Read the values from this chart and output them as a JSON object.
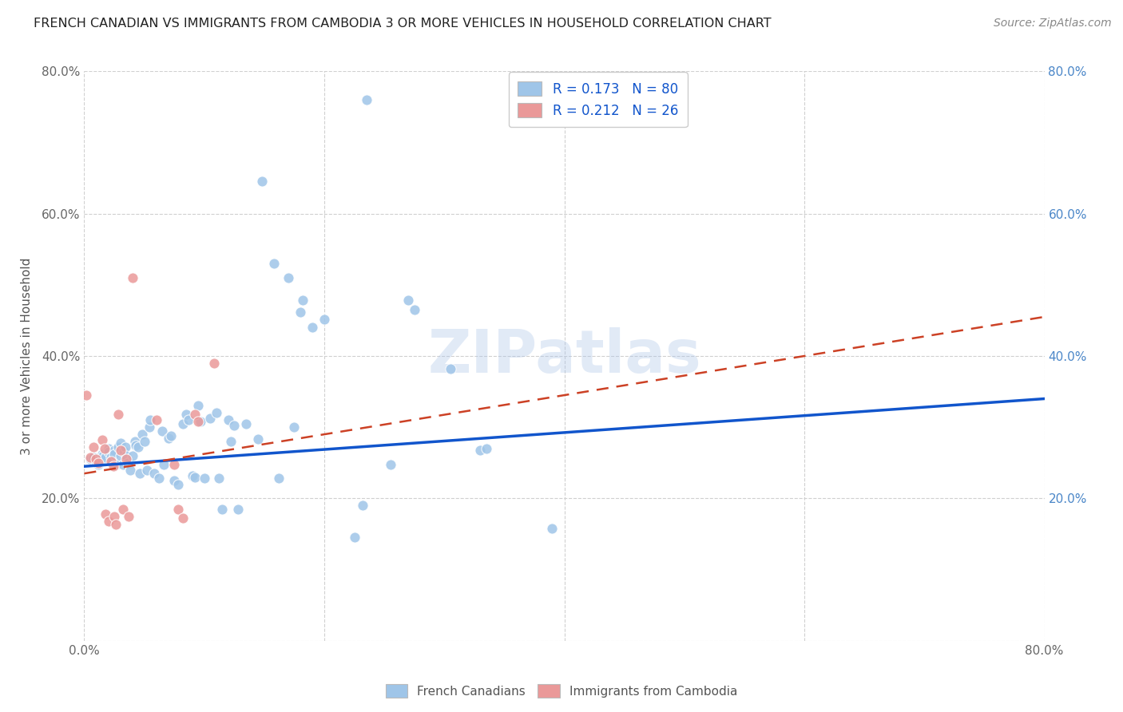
{
  "title": "FRENCH CANADIAN VS IMMIGRANTS FROM CAMBODIA 3 OR MORE VEHICLES IN HOUSEHOLD CORRELATION CHART",
  "source": "Source: ZipAtlas.com",
  "ylabel": "3 or more Vehicles in Household",
  "xlim": [
    0,
    0.8
  ],
  "ylim": [
    0,
    0.8
  ],
  "xtick_vals": [
    0.0,
    0.2,
    0.4,
    0.6,
    0.8
  ],
  "ytick_vals": [
    0.0,
    0.2,
    0.4,
    0.6,
    0.8
  ],
  "xticklabels": [
    "0.0%",
    "",
    "",
    "",
    "80.0%"
  ],
  "yticklabels": [
    "",
    "20.0%",
    "40.0%",
    "60.0%",
    "80.0%"
  ],
  "right_yticklabels": [
    "20.0%",
    "40.0%",
    "60.0%",
    "80.0%"
  ],
  "blue_color": "#9fc5e8",
  "pink_color": "#ea9999",
  "blue_line_color": "#1155cc",
  "pink_line_color": "#cc4125",
  "legend_R_blue": "0.173",
  "legend_N_blue": "80",
  "legend_R_pink": "0.212",
  "legend_N_pink": "26",
  "bottom_legend": [
    "French Canadians",
    "Immigrants from Cambodia"
  ],
  "watermark": "ZIPatlas",
  "blue_line_x0": 0.0,
  "blue_line_y0": 0.245,
  "blue_line_x1": 0.8,
  "blue_line_y1": 0.34,
  "pink_line_x0": 0.0,
  "pink_line_y0": 0.235,
  "pink_line_x1": 0.8,
  "pink_line_y1": 0.455,
  "blue_points": [
    [
      0.005,
      0.255
    ],
    [
      0.008,
      0.258
    ],
    [
      0.01,
      0.252
    ],
    [
      0.012,
      0.248
    ],
    [
      0.015,
      0.262
    ],
    [
      0.015,
      0.255
    ],
    [
      0.016,
      0.26
    ],
    [
      0.018,
      0.258
    ],
    [
      0.02,
      0.27
    ],
    [
      0.02,
      0.265
    ],
    [
      0.022,
      0.258
    ],
    [
      0.023,
      0.253
    ],
    [
      0.025,
      0.268
    ],
    [
      0.025,
      0.262
    ],
    [
      0.026,
      0.25
    ],
    [
      0.027,
      0.247
    ],
    [
      0.028,
      0.272
    ],
    [
      0.03,
      0.278
    ],
    [
      0.03,
      0.26
    ],
    [
      0.032,
      0.248
    ],
    [
      0.033,
      0.267
    ],
    [
      0.034,
      0.272
    ],
    [
      0.035,
      0.26
    ],
    [
      0.036,
      0.25
    ],
    [
      0.038,
      0.24
    ],
    [
      0.04,
      0.26
    ],
    [
      0.042,
      0.28
    ],
    [
      0.043,
      0.275
    ],
    [
      0.045,
      0.272
    ],
    [
      0.046,
      0.235
    ],
    [
      0.048,
      0.29
    ],
    [
      0.05,
      0.28
    ],
    [
      0.052,
      0.24
    ],
    [
      0.054,
      0.3
    ],
    [
      0.055,
      0.31
    ],
    [
      0.058,
      0.235
    ],
    [
      0.062,
      0.228
    ],
    [
      0.065,
      0.295
    ],
    [
      0.066,
      0.248
    ],
    [
      0.07,
      0.285
    ],
    [
      0.072,
      0.288
    ],
    [
      0.075,
      0.225
    ],
    [
      0.078,
      0.22
    ],
    [
      0.082,
      0.305
    ],
    [
      0.085,
      0.318
    ],
    [
      0.087,
      0.31
    ],
    [
      0.09,
      0.232
    ],
    [
      0.092,
      0.23
    ],
    [
      0.095,
      0.33
    ],
    [
      0.097,
      0.308
    ],
    [
      0.1,
      0.228
    ],
    [
      0.105,
      0.312
    ],
    [
      0.11,
      0.32
    ],
    [
      0.112,
      0.228
    ],
    [
      0.115,
      0.185
    ],
    [
      0.12,
      0.31
    ],
    [
      0.122,
      0.28
    ],
    [
      0.125,
      0.302
    ],
    [
      0.128,
      0.185
    ],
    [
      0.135,
      0.305
    ],
    [
      0.145,
      0.283
    ],
    [
      0.148,
      0.645
    ],
    [
      0.158,
      0.53
    ],
    [
      0.162,
      0.228
    ],
    [
      0.17,
      0.51
    ],
    [
      0.175,
      0.3
    ],
    [
      0.18,
      0.462
    ],
    [
      0.182,
      0.478
    ],
    [
      0.19,
      0.44
    ],
    [
      0.2,
      0.452
    ],
    [
      0.225,
      0.145
    ],
    [
      0.232,
      0.19
    ],
    [
      0.235,
      0.76
    ],
    [
      0.255,
      0.248
    ],
    [
      0.27,
      0.478
    ],
    [
      0.275,
      0.465
    ],
    [
      0.305,
      0.382
    ],
    [
      0.33,
      0.268
    ],
    [
      0.335,
      0.27
    ],
    [
      0.39,
      0.158
    ]
  ],
  "pink_points": [
    [
      0.005,
      0.258
    ],
    [
      0.008,
      0.272
    ],
    [
      0.01,
      0.255
    ],
    [
      0.012,
      0.25
    ],
    [
      0.015,
      0.282
    ],
    [
      0.017,
      0.27
    ],
    [
      0.018,
      0.178
    ],
    [
      0.02,
      0.168
    ],
    [
      0.022,
      0.252
    ],
    [
      0.024,
      0.245
    ],
    [
      0.025,
      0.175
    ],
    [
      0.026,
      0.163
    ],
    [
      0.028,
      0.318
    ],
    [
      0.03,
      0.268
    ],
    [
      0.032,
      0.185
    ],
    [
      0.035,
      0.255
    ],
    [
      0.037,
      0.175
    ],
    [
      0.04,
      0.51
    ],
    [
      0.06,
      0.31
    ],
    [
      0.075,
      0.248
    ],
    [
      0.078,
      0.185
    ],
    [
      0.082,
      0.172
    ],
    [
      0.092,
      0.318
    ],
    [
      0.095,
      0.308
    ],
    [
      0.002,
      0.345
    ],
    [
      0.108,
      0.39
    ]
  ],
  "grid_color": "#d0d0d0",
  "background_color": "#ffffff",
  "title_color": "#222222",
  "right_tick_color": "#4a86c8",
  "left_tick_color": "#777777"
}
